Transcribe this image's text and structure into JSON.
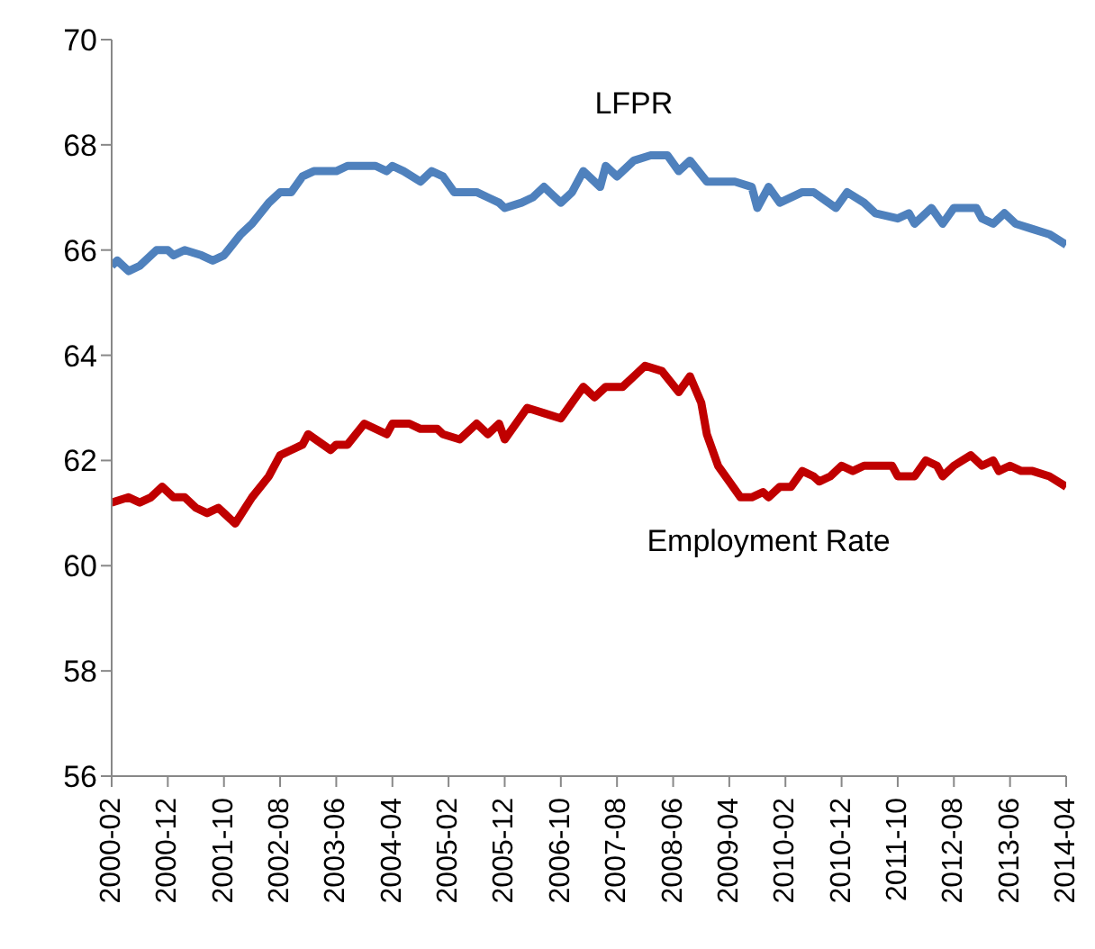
{
  "chart_data": {
    "type": "line",
    "xlim": [
      "2000-02",
      "2014-04"
    ],
    "xticks": [
      "2000-02",
      "2000-12",
      "2001-10",
      "2002-08",
      "2003-06",
      "2004-04",
      "2005-02",
      "2005-12",
      "2006-10",
      "2007-08",
      "2008-06",
      "2009-04",
      "2010-02",
      "2010-12",
      "2011-10",
      "2012-08",
      "2013-06",
      "2014-04"
    ],
    "ylim": [
      56,
      70
    ],
    "yticks": [
      56,
      58,
      60,
      62,
      64,
      66,
      68,
      70
    ],
    "grid": false,
    "legend": false,
    "marker": "none",
    "line_style": "solid",
    "series": [
      {
        "name": "LFPR",
        "color": "#4f81bd",
        "x": [
          "2000-02",
          "2000-03",
          "2000-05",
          "2000-07",
          "2000-10",
          "2000-12",
          "2001-01",
          "2001-03",
          "2001-06",
          "2001-08",
          "2001-10",
          "2002-01",
          "2002-03",
          "2002-06",
          "2002-08",
          "2002-10",
          "2002-12",
          "2003-02",
          "2003-06",
          "2003-08",
          "2004-01",
          "2004-03",
          "2004-04",
          "2004-06",
          "2004-09",
          "2004-11",
          "2005-01",
          "2005-03",
          "2005-07",
          "2005-09",
          "2005-11",
          "2005-12",
          "2006-03",
          "2006-05",
          "2006-07",
          "2006-08",
          "2006-10",
          "2006-12",
          "2007-02",
          "2007-05",
          "2007-06",
          "2007-08",
          "2007-11",
          "2008-02",
          "2008-05",
          "2008-07",
          "2008-09",
          "2008-12",
          "2009-05",
          "2009-08",
          "2009-09",
          "2009-11",
          "2010-01",
          "2010-05",
          "2010-07",
          "2010-11",
          "2011-01",
          "2011-04",
          "2011-06",
          "2011-10",
          "2011-12",
          "2012-01",
          "2012-04",
          "2012-06",
          "2012-08",
          "2012-12",
          "2013-01",
          "2013-03",
          "2013-05",
          "2013-07",
          "2013-10",
          "2014-01",
          "2014-04"
        ],
        "values": [
          65.7,
          65.8,
          65.6,
          65.7,
          66.0,
          66.0,
          65.9,
          66.0,
          65.9,
          65.8,
          65.9,
          66.3,
          66.5,
          66.9,
          67.1,
          67.1,
          67.4,
          67.5,
          67.5,
          67.6,
          67.6,
          67.5,
          67.6,
          67.5,
          67.3,
          67.5,
          67.4,
          67.1,
          67.1,
          67.0,
          66.9,
          66.8,
          66.9,
          67.0,
          67.2,
          67.1,
          66.9,
          67.1,
          67.5,
          67.2,
          67.6,
          67.4,
          67.7,
          67.8,
          67.8,
          67.5,
          67.7,
          67.3,
          67.3,
          67.2,
          66.8,
          67.2,
          66.9,
          67.1,
          67.1,
          66.8,
          67.1,
          66.9,
          66.7,
          66.6,
          66.7,
          66.5,
          66.8,
          66.5,
          66.8,
          66.8,
          66.6,
          66.5,
          66.7,
          66.5,
          66.4,
          66.3,
          66.1
        ]
      },
      {
        "name": "Employment Rate",
        "color": "#c00000",
        "x": [
          "2000-02",
          "2000-05",
          "2000-07",
          "2000-09",
          "2000-11",
          "2001-01",
          "2001-03",
          "2001-05",
          "2001-07",
          "2001-09",
          "2001-10",
          "2001-12",
          "2002-03",
          "2002-06",
          "2002-08",
          "2002-10",
          "2002-12",
          "2003-01",
          "2003-05",
          "2003-06",
          "2003-08",
          "2003-11",
          "2004-03",
          "2004-04",
          "2004-07",
          "2004-09",
          "2004-12",
          "2005-01",
          "2005-04",
          "2005-07",
          "2005-09",
          "2005-11",
          "2005-12",
          "2006-04",
          "2006-07",
          "2006-10",
          "2006-12",
          "2007-02",
          "2007-04",
          "2007-06",
          "2007-09",
          "2007-11",
          "2008-01",
          "2008-04",
          "2008-07",
          "2008-09",
          "2008-11",
          "2008-12",
          "2009-02",
          "2009-04",
          "2009-06",
          "2009-08",
          "2009-10",
          "2009-11",
          "2010-01",
          "2010-03",
          "2010-05",
          "2010-07",
          "2010-08",
          "2010-10",
          "2010-12",
          "2011-02",
          "2011-04",
          "2011-09",
          "2011-10",
          "2012-01",
          "2012-03",
          "2012-05",
          "2012-06",
          "2012-08",
          "2012-11",
          "2013-01",
          "2013-03",
          "2013-04",
          "2013-06",
          "2013-08",
          "2013-10",
          "2014-01",
          "2014-04"
        ],
        "values": [
          61.2,
          61.3,
          61.2,
          61.3,
          61.5,
          61.3,
          61.3,
          61.1,
          61.0,
          61.1,
          61.0,
          60.8,
          61.3,
          61.7,
          62.1,
          62.2,
          62.3,
          62.5,
          62.2,
          62.3,
          62.3,
          62.7,
          62.5,
          62.7,
          62.7,
          62.6,
          62.6,
          62.5,
          62.4,
          62.7,
          62.5,
          62.7,
          62.4,
          63.0,
          62.9,
          62.8,
          63.1,
          63.4,
          63.2,
          63.4,
          63.4,
          63.6,
          63.8,
          63.7,
          63.3,
          63.6,
          63.1,
          62.5,
          61.9,
          61.6,
          61.3,
          61.3,
          61.4,
          61.3,
          61.5,
          61.5,
          61.8,
          61.7,
          61.6,
          61.7,
          61.9,
          61.8,
          61.9,
          61.9,
          61.7,
          61.7,
          62.0,
          61.9,
          61.7,
          61.9,
          62.1,
          61.9,
          62.0,
          61.8,
          61.9,
          61.8,
          61.8,
          61.7,
          61.5
        ]
      }
    ]
  }
}
